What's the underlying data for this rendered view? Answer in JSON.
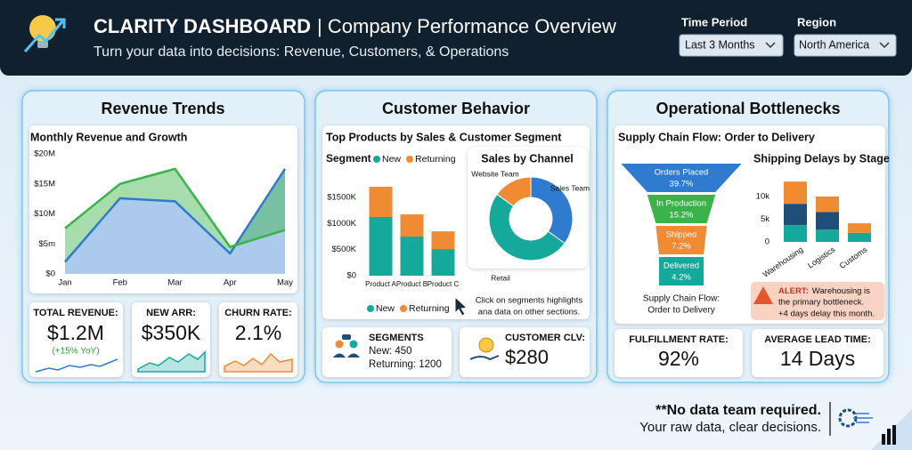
{
  "header": {
    "title": "CLARITY DASHBOARD",
    "title_rest": "| Company Performance Overview",
    "subtitle": "Turn your data into decisions: Revenue, Customers, & Operations"
  },
  "filters": [
    {
      "label": "Time Period",
      "value": "Last 3 Months"
    },
    {
      "label": "Region",
      "value": "North America"
    }
  ],
  "panels": [
    {
      "title": "Revenue Trends",
      "kpis": [
        {
          "label": "TOTAL REVENUE:",
          "value": "$1.2M",
          "note": "(+15% YoY)"
        },
        {
          "label": "NEW ARR:",
          "value": "$350K"
        },
        {
          "label": "CHURN RATE:",
          "value": "2.1%"
        }
      ]
    },
    {
      "title": "Customer Behavior",
      "segments": {
        "label": "SEGMENTS",
        "lines": [
          "New: 450",
          "Returning: 1200"
        ]
      },
      "clv": {
        "label": "CUSTOMER CLV:",
        "value": "$280"
      }
    },
    {
      "title": "Operational Bottlenecks",
      "alert": {
        "label": "ALERT:",
        "lines": [
          "Warehousing is",
          "the primary bottleneck.",
          "+4 days delay this month."
        ]
      },
      "kpis": [
        {
          "label": "FULFILLMENT RATE:",
          "value": "92%"
        },
        {
          "label": "AVERAGE LEAD TIME:",
          "value": "14 Days"
        }
      ]
    }
  ],
  "chart_data": [
    {
      "type": "line",
      "title": "Monthly Revenue and Growth",
      "categories": [
        "Jan",
        "Feb",
        "Mar",
        "Apr",
        "May"
      ],
      "series": [
        {
          "color": "#2f7bd0",
          "values": [
            2,
            12.6,
            12.1,
            3.4,
            17.5
          ]
        },
        {
          "color": "#3bb34a",
          "values": [
            7.6,
            15,
            17.5,
            4.5,
            7.3
          ]
        }
      ],
      "ylim": [
        0,
        20
      ],
      "yticks": [
        {
          "value": 0,
          "label": "$0"
        },
        {
          "value": 5,
          "label": "$5m"
        },
        {
          "value": 10,
          "label": "$10M"
        },
        {
          "value": 15,
          "label": "$15M"
        },
        {
          "value": 20,
          "label": "$20M"
        }
      ]
    },
    {
      "type": "stacked-bar",
      "title": "Top Products by Sales & Customer Segment",
      "legend_title": "Segment",
      "categories": [
        "Product A",
        "Product B",
        "Product C"
      ],
      "series": [
        {
          "name": "New",
          "color": "#14a99a",
          "values": [
            1125,
            750,
            510
          ]
        },
        {
          "name": "Returning",
          "color": "#f08a33",
          "values": [
            580,
            425,
            340
          ]
        }
      ],
      "ylim": [
        0,
        1800
      ],
      "yticks": [
        {
          "value": 0,
          "label": "$0"
        },
        {
          "value": 500,
          "label": "$500K"
        },
        {
          "value": 1000,
          "label": "$1000K"
        },
        {
          "value": 1500,
          "label": "$1500K"
        }
      ]
    },
    {
      "type": "pie",
      "title": "Sales by Channel",
      "categories": [
        "Sales Team",
        "Retail",
        "Website Team"
      ],
      "values": [
        35,
        50,
        15
      ],
      "colors": [
        "#2f7bd0",
        "#14a99a",
        "#f08a33"
      ],
      "note": [
        "Click on segments highlights",
        "ana data on other sections."
      ]
    },
    {
      "type": "funnel",
      "title": "Supply Chain Flow: Order to Delivery",
      "categories": [
        "Orders Placed",
        "In Production",
        "Shipped",
        "Delivered"
      ],
      "values": [
        39.7,
        15.2,
        7.2,
        4.2
      ],
      "value_labels": [
        "39.7%",
        "15.2%",
        "7.2%",
        "4.2%"
      ],
      "colors": [
        "#2f7bd0",
        "#3bb34a",
        "#f08a33",
        "#14a99a"
      ],
      "caption": [
        "Supply Chain Flow:",
        "Order to Delivery"
      ]
    },
    {
      "type": "stacked-bar",
      "title": "Shipping Delays by Stage",
      "categories": [
        "Warehousing",
        "Logistics",
        "Customs"
      ],
      "series": [
        {
          "color": "#14a99a",
          "values": [
            3.7,
            2.7,
            2.0
          ]
        },
        {
          "color": "#1f4e79",
          "values": [
            4.7,
            3.9,
            0
          ]
        },
        {
          "color": "#f08a33",
          "values": [
            4.9,
            3.4,
            2.1
          ]
        }
      ],
      "ylim": [
        0,
        15
      ],
      "yticks": [
        0,
        {
          "value": 5,
          "label": "5k"
        },
        {
          "value": 10,
          "label": "10k"
        }
      ]
    }
  ],
  "footer": {
    "lines": [
      "**No data team required.",
      "Your raw data, clear decisions."
    ]
  }
}
